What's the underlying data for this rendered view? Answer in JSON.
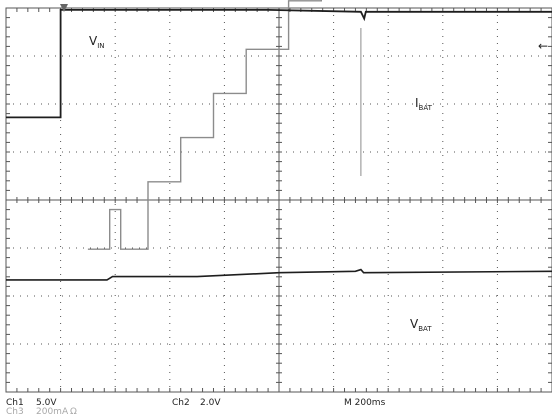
{
  "screen": {
    "background": "#ffffff",
    "grid_color": "#555555",
    "trace_dark": "#1e1e1e",
    "trace_light": "#8c8c8c",
    "footer_light": "#a8a8a8",
    "divisions_x": 10,
    "divisions_y": 8
  },
  "channels": {
    "ch1_name": "Ch1",
    "ch1_scale": "5.0V",
    "ch2_name": "Ch2",
    "ch2_scale": "2.0V",
    "ch3_name": "Ch3",
    "ch3_scale": "200mA",
    "ch3_coupling": "Ω",
    "timebase": "M 200ms"
  },
  "labels": {
    "vin_main": "V",
    "vin_sub": "IN",
    "ibat_main": "I",
    "ibat_sub": "BAT",
    "vbat_main": "V",
    "vbat_sub": "BAT",
    "trigger_arrow": "←"
  },
  "chart_data": {
    "type": "line",
    "title": "",
    "x_unit": "ms",
    "x_range": [
      0,
      2000
    ],
    "grid": true,
    "series": [
      {
        "name": "V_IN",
        "channel": "Ch1",
        "unit": "V",
        "points": [
          [
            0,
            8.6
          ],
          [
            200,
            8.6
          ],
          [
            200,
            19.8
          ],
          [
            960,
            19.8
          ],
          [
            1300,
            19.6
          ],
          [
            1312,
            18.9
          ],
          [
            1318,
            19.6
          ],
          [
            2000,
            19.6
          ]
        ]
      },
      {
        "name": "I_BAT",
        "channel": "Ch3",
        "unit": "mA",
        "points": [
          [
            300,
            -205
          ],
          [
            380,
            -205
          ],
          [
            380,
            -40
          ],
          [
            420,
            -40
          ],
          [
            420,
            -205
          ],
          [
            520,
            -205
          ],
          [
            520,
            76
          ],
          [
            640,
            76
          ],
          [
            640,
            260
          ],
          [
            760,
            260
          ],
          [
            760,
            444
          ],
          [
            880,
            444
          ],
          [
            880,
            628
          ],
          [
            1035,
            628
          ],
          [
            1035,
            830
          ],
          [
            1155,
            830
          ],
          [
            1155,
            1010
          ],
          [
            2000,
            1010
          ]
        ]
      },
      {
        "name": "V_BAT",
        "channel": "Ch2",
        "unit": "V",
        "points": [
          [
            0,
            -3.33
          ],
          [
            370,
            -3.33
          ],
          [
            390,
            -3.19
          ],
          [
            700,
            -3.19
          ],
          [
            1000,
            -3.03
          ],
          [
            1280,
            -2.97
          ],
          [
            1300,
            -2.9
          ],
          [
            1310,
            -3.03
          ],
          [
            2000,
            -2.97
          ]
        ]
      }
    ]
  }
}
